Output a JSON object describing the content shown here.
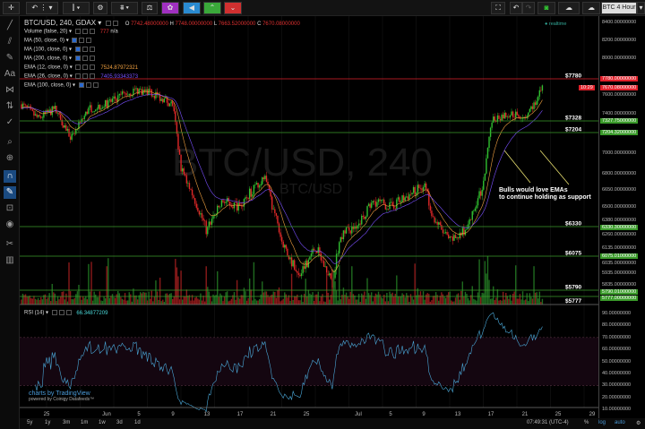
{
  "toolbar": {
    "timeframe_label": "BTC 4 Hour",
    "buttons": [
      "crosshair",
      "bar-style",
      "indicators",
      "compare",
      "settings",
      "theme-purple",
      "announce",
      "up",
      "down",
      "fullscreen",
      "undo",
      "redo",
      "snapshot",
      "load",
      "save"
    ]
  },
  "header": {
    "symbol": "BTC/USD, 240, GDAX",
    "open_label": "O",
    "open": "7742.48000000",
    "high_label": "H",
    "high": "7748.00000000",
    "low_label": "L",
    "low": "7663.52000000",
    "close_label": "C",
    "close": "7670.08000000"
  },
  "indicators": [
    {
      "label": "Volume (false, 20)",
      "value": "777",
      "extra": "n/a",
      "color": "#e03030"
    },
    {
      "label": "MA (50, close, 0)",
      "value": ""
    },
    {
      "label": "MA (100, close, 0)",
      "value": ""
    },
    {
      "label": "MA (200, close, 0)",
      "value": ""
    },
    {
      "label": "EMA (12, close, 0)",
      "value": "7524.87972321",
      "color": "#f0a040"
    },
    {
      "label": "EMA (26, close, 0)",
      "value": "7405.93343373",
      "color": "#7a50ff"
    },
    {
      "label": "EMA (100, close, 0)",
      "value": ""
    }
  ],
  "watermark": {
    "big": "BTC/USD, 240",
    "small": "BTC/USD"
  },
  "realtime": "realtime",
  "annotation": {
    "line1": "Bulls would love EMAs",
    "line2": "to continue holding as support"
  },
  "price_axis": [
    "8400.00000000",
    "8200.00000000",
    "8000.00000000",
    "7600.00000000",
    "7400.00000000",
    "7000.00000000",
    "6800.00000000",
    "6650.00000000",
    "6500.00000000",
    "6380.00000000",
    "6260.00000000",
    "6135.00000000",
    "6035.00000000",
    "5935.00000000",
    "5835.00000000"
  ],
  "levels": [
    {
      "label": "$7780",
      "tag": "7780.00000000",
      "color": "#e0202a"
    },
    {
      "label": "$7328",
      "tag": "7327.75000000",
      "color": "#3a9a2a"
    },
    {
      "label": "$7204",
      "tag": "7204.32000000",
      "color": "#3a9a2a"
    },
    {
      "label": "$6330",
      "tag": "6330.30000000",
      "color": "#3a9a2a"
    },
    {
      "label": "$6075",
      "tag": "6075.01000000",
      "color": "#3a9a2a"
    },
    {
      "label": "$5790",
      "tag": "5790.01000000",
      "color": "#3a9a2a"
    },
    {
      "label": "$5777",
      "tag": "5777.00000000",
      "color": "#3a9a2a"
    }
  ],
  "last_price": {
    "tag": "7670.08000000",
    "countdown": "10:29",
    "color": "#e0202a"
  },
  "rsi": {
    "label": "RSI (14)",
    "value": "66.34877209",
    "color": "#4aa8d8",
    "axis": [
      "90.00000000",
      "80.00000000",
      "70.00000000",
      "60.00000000",
      "50.00000000",
      "40.00000000",
      "30.00000000",
      "20.00000000",
      "10.00000000"
    ],
    "band": [
      30,
      70
    ]
  },
  "date_axis": [
    "25",
    "Jun",
    "5",
    "9",
    "13",
    "17",
    "21",
    "25",
    "Jul",
    "5",
    "9",
    "13",
    "17",
    "21",
    "25",
    "29"
  ],
  "price_path": [
    [
      "May 22",
      7500
    ],
    [
      "May 24",
      7350
    ],
    [
      "May 26",
      7450
    ],
    [
      "May 28",
      7150
    ],
    [
      "May 30",
      7450
    ],
    [
      "Jun 1",
      7500
    ],
    [
      "Jun 3",
      7600
    ],
    [
      "Jun 5",
      7650
    ],
    [
      "Jun 7",
      7600
    ],
    [
      "Jun 9",
      7500
    ],
    [
      "Jun 10",
      6850
    ],
    [
      "Jun 12",
      6500
    ],
    [
      "Jun 13",
      6300
    ],
    [
      "Jun 15",
      6550
    ],
    [
      "Jun 17",
      6500
    ],
    [
      "Jun 19",
      6700
    ],
    [
      "Jun 20",
      6750
    ],
    [
      "Jun 22",
      6200
    ],
    [
      "Jun 24",
      5900
    ],
    [
      "Jun 26",
      6150
    ],
    [
      "Jun 28",
      5850
    ],
    [
      "Jun 29",
      6250
    ],
    [
      "Jul 1",
      6350
    ],
    [
      "Jul 3",
      6550
    ],
    [
      "Jul 5",
      6500
    ],
    [
      "Jul 7",
      6600
    ],
    [
      "Jul 9",
      6700
    ],
    [
      "Jul 10",
      6400
    ],
    [
      "Jul 12",
      6200
    ],
    [
      "Jul 14",
      6300
    ],
    [
      "Jul 16",
      6700
    ],
    [
      "Jul 17",
      7350
    ],
    [
      "Jul 19",
      7400
    ],
    [
      "Jul 21",
      7380
    ],
    [
      "Jul 22",
      7500
    ],
    [
      "Jul 23",
      7700
    ]
  ],
  "branding": {
    "line1": "charts by TradingView",
    "line2": "powered by Coinigy Datafeeds™"
  },
  "ranges": [
    "5y",
    "1y",
    "3m",
    "1m",
    "1w",
    "3d",
    "1d"
  ],
  "status": {
    "time": "07:49:31 (UTC-4)",
    "percent": "%",
    "log": "log",
    "auto": "auto"
  }
}
